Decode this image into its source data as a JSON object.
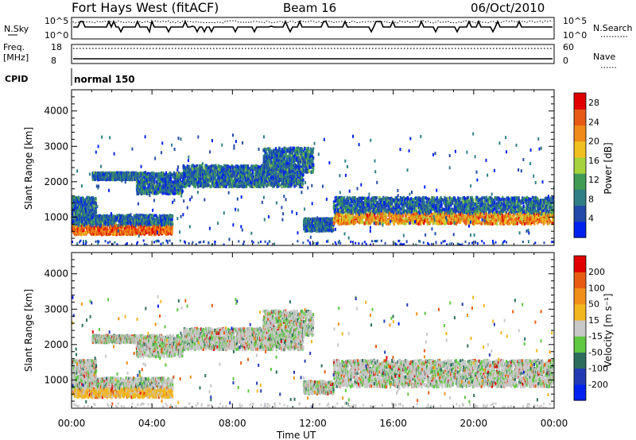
{
  "header": {
    "station": "Fort Hays West (fitACF)",
    "beam": "Beam 16",
    "date": "06/Oct/2010"
  },
  "nsky_panel": {
    "left_label": "N.Sky",
    "left_ticks": [
      "10^5",
      "10^0"
    ],
    "right_ticks": [
      "10^5",
      "10^0"
    ],
    "right_label": "N.Search"
  },
  "freq_panel": {
    "left_label_1": "Freq.",
    "left_label_2": "[MHz]",
    "left_ticks": [
      "18",
      "8"
    ],
    "right_ticks": [
      "60",
      "0"
    ],
    "right_label": "Nave"
  },
  "cpid_panel": {
    "label": "CPID",
    "program": "normal 150"
  },
  "chart_data": [
    {
      "type": "heatmap",
      "ylabel": "Slant Range [km]",
      "ylim": [
        200,
        4600
      ],
      "yticks": [
        1000,
        2000,
        3000,
        4000
      ],
      "x_range_hours": [
        0,
        24
      ],
      "xticks_hours": [
        0,
        4,
        8,
        12,
        16,
        20,
        24
      ],
      "colorbar": {
        "label": "Power [dB]",
        "tick_labels": [
          "4",
          "8",
          "12",
          "16",
          "20",
          "24",
          "28"
        ],
        "range": [
          0,
          30
        ],
        "colors": [
          "#0022ee",
          "#224aa8",
          "#2f7f86",
          "#3e9c55",
          "#a6d23c",
          "#f0c020",
          "#f08a1a",
          "#e65a15",
          "#e00000"
        ]
      },
      "echo_regions": [
        {
          "t": [
            0.0,
            5.0
          ],
          "range": [
            550,
            1100
          ]
        },
        {
          "t": [
            0.0,
            1.2
          ],
          "range": [
            1100,
            1600
          ]
        },
        {
          "t": [
            1.0,
            3.2
          ],
          "range": [
            2100,
            2300
          ]
        },
        {
          "t": [
            3.2,
            5.5
          ],
          "range": [
            1700,
            2300
          ]
        },
        {
          "t": [
            5.5,
            11.5
          ],
          "range": [
            1900,
            2500
          ]
        },
        {
          "t": [
            9.5,
            12.0
          ],
          "range": [
            2300,
            3000
          ]
        },
        {
          "t": [
            11.5,
            13.0
          ],
          "range": [
            650,
            1000
          ]
        },
        {
          "t": [
            13.0,
            24.0
          ],
          "range": [
            850,
            1600
          ]
        }
      ]
    },
    {
      "type": "heatmap",
      "ylabel": "Slant Range [km]",
      "ylim": [
        200,
        4600
      ],
      "yticks": [
        1000,
        2000,
        3000,
        4000
      ],
      "x_range_hours": [
        0,
        24
      ],
      "xticks_hours": [
        0,
        4,
        8,
        12,
        16,
        20,
        24
      ],
      "xticklabels": [
        "00:00",
        "04:00",
        "08:00",
        "12:00",
        "16:00",
        "20:00",
        "00:00"
      ],
      "xlabel": "Time UT",
      "colorbar": {
        "label": "Velocity [m s⁻¹]",
        "tick_labels": [
          "200",
          "100",
          "50",
          "15",
          "-15",
          "-50",
          "-100",
          "-200"
        ],
        "range": [
          -250,
          250
        ],
        "colors": [
          "#0022ee",
          "#223bb4",
          "#2b6e5e",
          "#5ec840",
          "#c8c8c8",
          "#f2b61e",
          "#f0901a",
          "#e85c12",
          "#e00000"
        ]
      },
      "echo_regions": [
        {
          "t": [
            0.0,
            5.0
          ],
          "range": [
            550,
            1100
          ]
        },
        {
          "t": [
            0.0,
            1.2
          ],
          "range": [
            1100,
            1600
          ]
        },
        {
          "t": [
            1.0,
            3.2
          ],
          "range": [
            2100,
            2300
          ]
        },
        {
          "t": [
            3.2,
            5.5
          ],
          "range": [
            1700,
            2300
          ]
        },
        {
          "t": [
            5.5,
            11.5
          ],
          "range": [
            1900,
            2500
          ]
        },
        {
          "t": [
            9.5,
            12.0
          ],
          "range": [
            2300,
            3000
          ]
        },
        {
          "t": [
            11.5,
            13.0
          ],
          "range": [
            650,
            1000
          ]
        },
        {
          "t": [
            13.0,
            24.0
          ],
          "range": [
            850,
            1600
          ]
        }
      ]
    }
  ]
}
